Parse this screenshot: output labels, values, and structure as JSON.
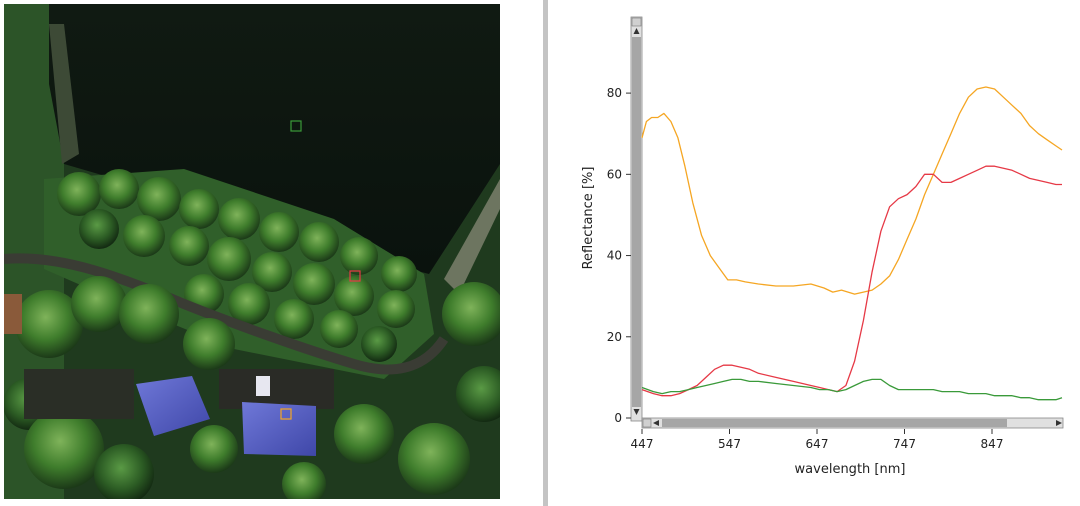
{
  "chart_data": {
    "type": "line",
    "xlabel": "wavelength [nm]",
    "ylabel": "Reflectance [%]",
    "xlim": [
      447,
      927
    ],
    "ylim": [
      0,
      98
    ],
    "xticks": [
      447,
      547,
      647,
      747,
      847
    ],
    "yticks": [
      0,
      20,
      40,
      60,
      80
    ],
    "grid": false,
    "legend": "none",
    "series": [
      {
        "color": "#f5a623",
        "x": [
          447,
          452,
          458,
          465,
          472,
          480,
          488,
          496,
          505,
          515,
          525,
          535,
          545,
          555,
          565,
          580,
          600,
          620,
          640,
          655,
          665,
          675,
          690,
          700,
          710,
          720,
          730,
          740,
          750,
          760,
          770,
          780,
          790,
          800,
          810,
          820,
          830,
          840,
          850,
          860,
          870,
          880,
          890,
          900,
          910,
          920,
          927
        ],
        "y": [
          69,
          73,
          74,
          74,
          75,
          73,
          69,
          62,
          53,
          45,
          40,
          37,
          34,
          34,
          33.5,
          33,
          32.5,
          32.5,
          33,
          32,
          31,
          31.5,
          30.5,
          31,
          31.5,
          33,
          35,
          39,
          44,
          49,
          55,
          60,
          65,
          70,
          75,
          79,
          81,
          81.5,
          81,
          79,
          77,
          75,
          72,
          70,
          68.5,
          67,
          66
        ]
      },
      {
        "color": "#e63946",
        "x": [
          447,
          460,
          470,
          480,
          490,
          500,
          510,
          520,
          530,
          540,
          550,
          560,
          570,
          580,
          600,
          620,
          640,
          650,
          660,
          670,
          680,
          690,
          700,
          710,
          720,
          730,
          740,
          750,
          760,
          770,
          780,
          790,
          800,
          810,
          820,
          830,
          840,
          850,
          860,
          870,
          880,
          890,
          900,
          910,
          920,
          927
        ],
        "y": [
          7,
          6,
          5.5,
          5.5,
          6,
          7,
          8,
          10,
          12,
          13,
          13,
          12.5,
          12,
          11,
          10,
          9,
          8,
          7.5,
          7,
          6.5,
          8,
          14,
          24,
          36,
          46,
          52,
          54,
          55,
          57,
          60,
          60,
          58,
          58,
          59,
          60,
          61,
          62,
          62,
          61.5,
          61,
          60,
          59,
          58.5,
          58,
          57.5,
          57.5
        ]
      },
      {
        "color": "#3a9a3a",
        "x": [
          447,
          460,
          470,
          480,
          490,
          500,
          510,
          520,
          530,
          540,
          550,
          560,
          570,
          580,
          600,
          620,
          640,
          650,
          660,
          670,
          680,
          690,
          700,
          710,
          720,
          730,
          740,
          750,
          760,
          770,
          780,
          790,
          800,
          810,
          820,
          830,
          840,
          850,
          860,
          870,
          880,
          890,
          900,
          910,
          920,
          927
        ],
        "y": [
          7.5,
          6.5,
          6,
          6.5,
          6.5,
          7,
          7.5,
          8,
          8.5,
          9,
          9.5,
          9.5,
          9,
          9,
          8.5,
          8,
          7.5,
          7,
          7,
          6.5,
          7,
          8,
          9,
          9.5,
          9.5,
          8,
          7,
          7,
          7,
          7,
          7,
          6.5,
          6.5,
          6.5,
          6,
          6,
          6,
          5.5,
          5.5,
          5.5,
          5,
          5,
          4.5,
          4.5,
          4.5,
          5
        ]
      }
    ]
  },
  "image": {
    "markers": [
      {
        "name": "green-sample-marker",
        "color": "#3a9a3a"
      },
      {
        "name": "red-sample-marker",
        "color": "#e63946"
      },
      {
        "name": "orange-sample-marker",
        "color": "#f5a623"
      }
    ]
  }
}
